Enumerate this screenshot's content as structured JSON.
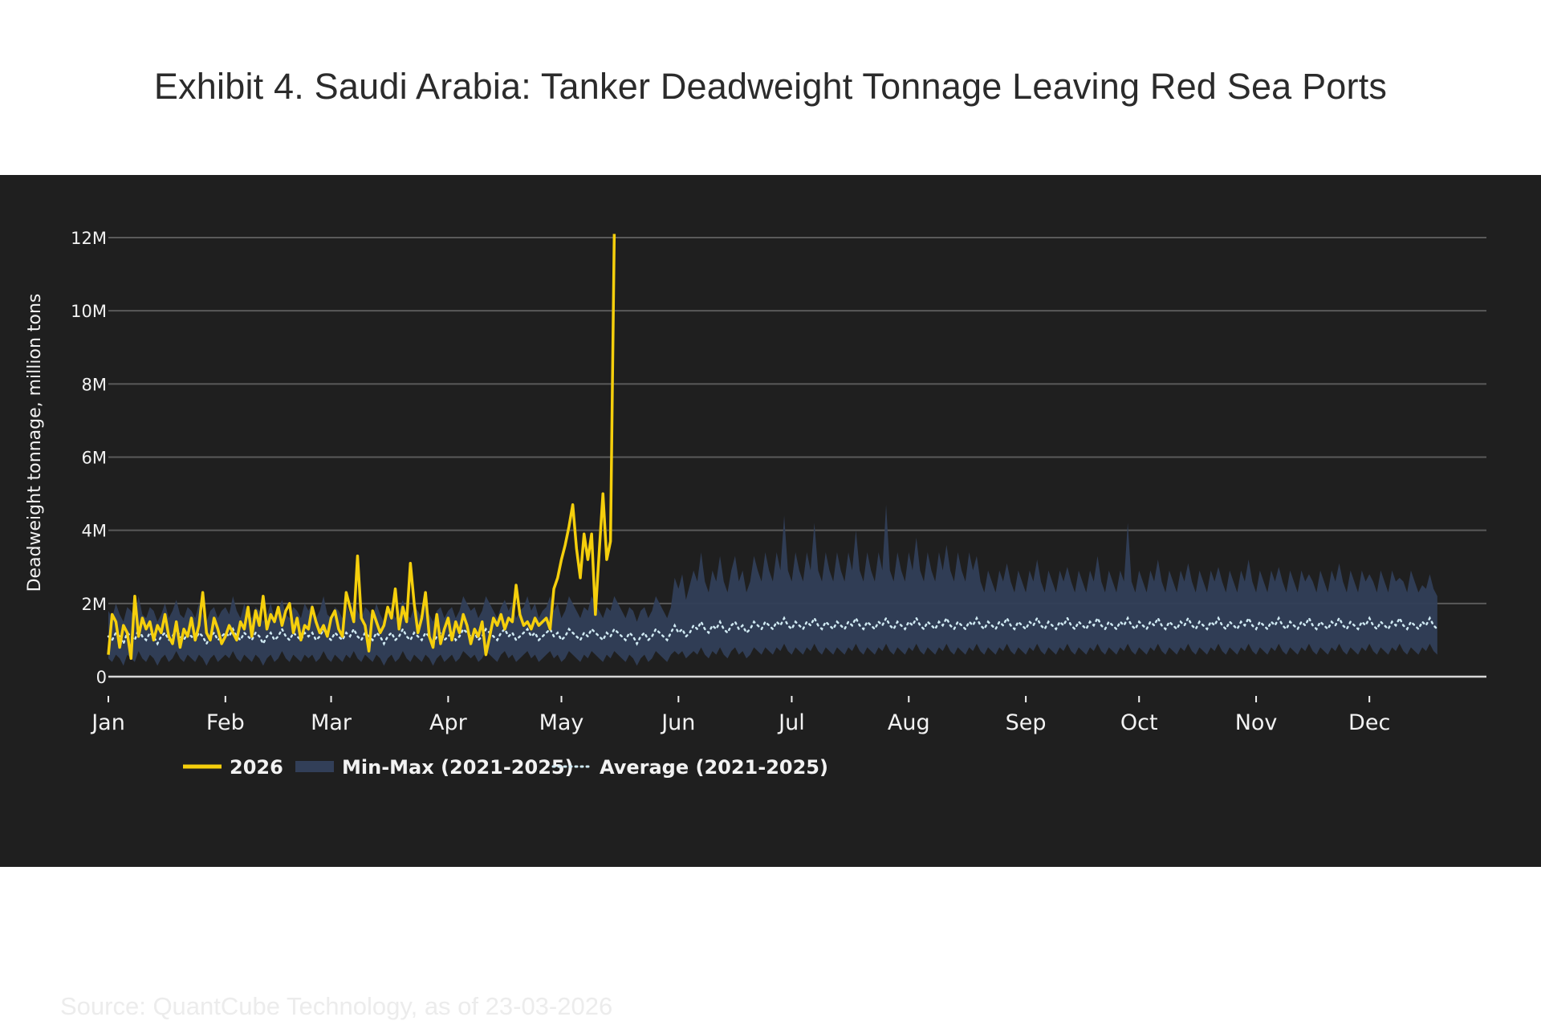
{
  "page": {
    "title": "Exhibit 4. Saudi Arabia: Tanker Deadweight Tonnage Leaving Red Sea Ports",
    "source": "Source: QuantCube Technology, as of 23-03-2026"
  },
  "colors": {
    "series_2026": "#f5cf0c",
    "band": "#323f58",
    "average": "#cfe9f2",
    "grid": "#5a5a5a",
    "zero_line": "#d8d8d8",
    "panel_bg": "#1f1f1f",
    "text": "#f2f2f2"
  },
  "chart_data": {
    "type": "line",
    "title": "Exhibit 4. Saudi Arabia: Tanker Deadweight Tonnage Leaving Red Sea Ports",
    "xlabel": "",
    "ylabel": "Deadweight tonnage, million tons",
    "ylim": [
      0,
      12.5
    ],
    "xlim_day": [
      1,
      366
    ],
    "y_ticks": [
      {
        "value": 0,
        "label": "0"
      },
      {
        "value": 2,
        "label": "2M"
      },
      {
        "value": 4,
        "label": "4M"
      },
      {
        "value": 6,
        "label": "6M"
      },
      {
        "value": 8,
        "label": "8M"
      },
      {
        "value": 10,
        "label": "10M"
      },
      {
        "value": 12,
        "label": "12M"
      }
    ],
    "x_ticks": [
      {
        "day": 1,
        "label": "Jan"
      },
      {
        "day": 32,
        "label": "Feb"
      },
      {
        "day": 60,
        "label": "Mar"
      },
      {
        "day": 91,
        "label": "Apr"
      },
      {
        "day": 121,
        "label": "May"
      },
      {
        "day": 152,
        "label": "Jun"
      },
      {
        "day": 182,
        "label": "Jul"
      },
      {
        "day": 213,
        "label": "Aug"
      },
      {
        "day": 244,
        "label": "Sep"
      },
      {
        "day": 274,
        "label": "Oct"
      },
      {
        "day": 305,
        "label": "Nov"
      },
      {
        "day": 335,
        "label": "Dec"
      }
    ],
    "legend": {
      "placement": "bottom-left",
      "entries": [
        {
          "label": "2026",
          "style": "solid"
        },
        {
          "label": "Min-Max (2021-2025)",
          "style": "band"
        },
        {
          "label": "Average (2021-2025)",
          "style": "dotted"
        }
      ]
    },
    "series": [
      {
        "name": "2026",
        "x_start_day": 1,
        "values": [
          0.6,
          1.7,
          1.5,
          0.8,
          1.4,
          1.2,
          0.5,
          2.2,
          1.1,
          1.6,
          1.3,
          1.5,
          1.0,
          1.4,
          1.2,
          1.7,
          1.1,
          0.9,
          1.5,
          0.8,
          1.3,
          1.1,
          1.6,
          1.0,
          1.4,
          2.3,
          1.2,
          1.0,
          1.6,
          1.3,
          0.9,
          1.1,
          1.4,
          1.2,
          1.0,
          1.5,
          1.3,
          1.9,
          1.1,
          1.8,
          1.4,
          2.2,
          1.3,
          1.7,
          1.5,
          1.9,
          1.4,
          1.8,
          2.0,
          1.2,
          1.6,
          1.0,
          1.4,
          1.3,
          1.9,
          1.5,
          1.2,
          1.4,
          1.1,
          1.6,
          1.8,
          1.3,
          1.1,
          2.3,
          1.9,
          1.5,
          3.3,
          1.6,
          1.4,
          0.7,
          1.8,
          1.5,
          1.2,
          1.4,
          1.9,
          1.6,
          2.4,
          1.3,
          1.9,
          1.5,
          3.1,
          2.0,
          1.2,
          1.6,
          2.3,
          1.1,
          0.8,
          1.7,
          0.9,
          1.3,
          1.6,
          1.0,
          1.5,
          1.2,
          1.7,
          1.4,
          0.9,
          1.3,
          1.1,
          1.5,
          0.6,
          1.1,
          1.6,
          1.4,
          1.7,
          1.3,
          1.6,
          1.5,
          2.5,
          1.7,
          1.4,
          1.5,
          1.3,
          1.6,
          1.4,
          1.5,
          1.6,
          1.3,
          2.4,
          2.7,
          3.2,
          3.6,
          4.1,
          4.7,
          3.5,
          2.7,
          3.9,
          3.2,
          3.9,
          1.7,
          3.4,
          5.0,
          3.2,
          3.7,
          12.1
        ]
      },
      {
        "name": "Average (2021-2025)",
        "x_start_day": 1,
        "values": [
          1.1,
          1.0,
          1.2,
          1.1,
          0.9,
          1.2,
          1.1,
          1.0,
          1.3,
          1.1,
          1.0,
          1.2,
          1.1,
          0.9,
          1.1,
          1.2,
          1.0,
          1.1,
          1.3,
          1.1,
          1.0,
          1.2,
          1.1,
          1.0,
          1.2,
          1.1,
          0.9,
          1.1,
          1.2,
          1.0,
          1.1,
          1.2,
          1.1,
          1.3,
          1.1,
          1.0,
          1.2,
          1.1,
          1.0,
          1.2,
          1.1,
          0.9,
          1.1,
          1.2,
          1.0,
          1.1,
          1.3,
          1.1,
          1.0,
          1.2,
          1.1,
          1.0,
          1.2,
          1.1,
          1.2,
          1.0,
          1.1,
          1.3,
          1.1,
          1.0,
          1.2,
          1.1,
          1.0,
          1.2,
          1.1,
          1.3,
          1.1,
          1.0,
          1.2,
          1.1,
          1.0,
          1.2,
          1.1,
          0.9,
          1.1,
          1.2,
          1.0,
          1.1,
          1.3,
          1.1,
          1.0,
          1.2,
          1.1,
          1.0,
          1.2,
          1.1,
          0.9,
          1.1,
          1.2,
          1.0,
          1.1,
          1.2,
          1.0,
          1.1,
          1.3,
          1.2,
          1.1,
          1.2,
          1.0,
          1.1,
          1.3,
          1.2,
          1.1,
          1.0,
          1.2,
          1.3,
          1.1,
          1.2,
          1.0,
          1.1,
          1.2,
          1.3,
          1.1,
          1.2,
          1.0,
          1.1,
          1.2,
          1.3,
          1.1,
          1.2,
          1.0,
          1.1,
          1.3,
          1.2,
          1.1,
          1.0,
          1.2,
          1.1,
          1.3,
          1.2,
          1.1,
          1.0,
          1.2,
          1.1,
          1.3,
          1.2,
          1.1,
          1.0,
          1.2,
          1.1,
          0.9,
          1.1,
          1.2,
          1.0,
          1.1,
          1.3,
          1.2,
          1.1,
          1.0,
          1.2,
          1.4,
          1.2,
          1.3,
          1.1,
          1.2,
          1.4,
          1.3,
          1.5,
          1.3,
          1.2,
          1.4,
          1.3,
          1.5,
          1.3,
          1.2,
          1.4,
          1.5,
          1.3,
          1.4,
          1.2,
          1.3,
          1.5,
          1.4,
          1.3,
          1.5,
          1.4,
          1.3,
          1.5,
          1.4,
          1.6,
          1.4,
          1.3,
          1.5,
          1.4,
          1.3,
          1.5,
          1.4,
          1.6,
          1.4,
          1.3,
          1.5,
          1.4,
          1.3,
          1.5,
          1.4,
          1.3,
          1.5,
          1.4,
          1.6,
          1.4,
          1.3,
          1.5,
          1.4,
          1.3,
          1.5,
          1.4,
          1.6,
          1.4,
          1.3,
          1.5,
          1.4,
          1.3,
          1.5,
          1.4,
          1.6,
          1.4,
          1.3,
          1.5,
          1.4,
          1.3,
          1.5,
          1.4,
          1.6,
          1.4,
          1.3,
          1.5,
          1.4,
          1.3,
          1.5,
          1.4,
          1.6,
          1.4,
          1.3,
          1.5,
          1.4,
          1.3,
          1.5,
          1.4,
          1.6,
          1.4,
          1.3,
          1.5,
          1.4,
          1.3,
          1.5,
          1.4,
          1.6,
          1.4,
          1.3,
          1.5,
          1.4,
          1.3,
          1.5,
          1.4,
          1.6,
          1.4,
          1.3,
          1.5,
          1.4,
          1.3,
          1.5,
          1.4,
          1.6,
          1.4,
          1.3,
          1.5,
          1.4,
          1.3,
          1.5,
          1.4,
          1.6,
          1.4,
          1.3,
          1.5,
          1.4,
          1.3,
          1.5,
          1.4,
          1.6,
          1.4,
          1.3,
          1.5,
          1.4,
          1.3,
          1.5,
          1.4,
          1.6,
          1.4,
          1.3,
          1.5,
          1.4,
          1.3,
          1.5,
          1.4,
          1.6,
          1.4,
          1.3,
          1.5,
          1.4,
          1.3,
          1.5,
          1.4,
          1.6,
          1.4,
          1.3,
          1.5,
          1.4,
          1.3,
          1.5,
          1.4,
          1.6,
          1.4,
          1.3,
          1.5,
          1.4,
          1.3,
          1.5,
          1.4,
          1.6,
          1.4,
          1.3,
          1.5,
          1.4,
          1.3,
          1.5,
          1.4,
          1.6,
          1.4,
          1.3,
          1.5,
          1.4,
          1.3,
          1.5,
          1.4,
          1.6,
          1.4,
          1.3,
          1.5,
          1.4,
          1.3,
          1.5,
          1.4,
          1.6,
          1.4,
          1.3,
          1.5,
          1.4,
          1.3,
          1.5,
          1.4,
          1.6,
          1.4,
          1.3
        ]
      }
    ],
    "band": {
      "name": "Min-Max (2021-2025)",
      "x_start_day": 1,
      "min": [
        0.5,
        0.4,
        0.6,
        0.5,
        0.3,
        0.6,
        0.5,
        0.4,
        0.7,
        0.5,
        0.4,
        0.6,
        0.5,
        0.3,
        0.5,
        0.6,
        0.4,
        0.5,
        0.7,
        0.5,
        0.4,
        0.6,
        0.5,
        0.4,
        0.6,
        0.5,
        0.3,
        0.5,
        0.6,
        0.4,
        0.5,
        0.6,
        0.5,
        0.7,
        0.5,
        0.4,
        0.6,
        0.5,
        0.4,
        0.6,
        0.5,
        0.3,
        0.5,
        0.6,
        0.4,
        0.5,
        0.7,
        0.5,
        0.4,
        0.6,
        0.5,
        0.4,
        0.6,
        0.5,
        0.6,
        0.4,
        0.5,
        0.7,
        0.5,
        0.4,
        0.6,
        0.5,
        0.4,
        0.6,
        0.5,
        0.7,
        0.5,
        0.4,
        0.6,
        0.5,
        0.4,
        0.6,
        0.5,
        0.3,
        0.5,
        0.6,
        0.4,
        0.5,
        0.7,
        0.5,
        0.4,
        0.6,
        0.5,
        0.4,
        0.6,
        0.5,
        0.3,
        0.5,
        0.6,
        0.4,
        0.5,
        0.6,
        0.4,
        0.5,
        0.7,
        0.6,
        0.5,
        0.6,
        0.4,
        0.5,
        0.7,
        0.6,
        0.5,
        0.4,
        0.6,
        0.7,
        0.5,
        0.6,
        0.4,
        0.5,
        0.6,
        0.7,
        0.5,
        0.6,
        0.4,
        0.5,
        0.6,
        0.7,
        0.5,
        0.6,
        0.4,
        0.5,
        0.7,
        0.6,
        0.5,
        0.4,
        0.6,
        0.5,
        0.7,
        0.6,
        0.5,
        0.4,
        0.6,
        0.5,
        0.7,
        0.6,
        0.5,
        0.4,
        0.6,
        0.5,
        0.3,
        0.5,
        0.6,
        0.4,
        0.5,
        0.7,
        0.6,
        0.5,
        0.4,
        0.6,
        0.7,
        0.6,
        0.7,
        0.5,
        0.6,
        0.7,
        0.6,
        0.8,
        0.6,
        0.5,
        0.7,
        0.6,
        0.8,
        0.6,
        0.5,
        0.7,
        0.8,
        0.6,
        0.7,
        0.5,
        0.6,
        0.8,
        0.7,
        0.6,
        0.8,
        0.7,
        0.6,
        0.8,
        0.7,
        0.9,
        0.7,
        0.6,
        0.8,
        0.7,
        0.6,
        0.8,
        0.7,
        0.9,
        0.7,
        0.6,
        0.8,
        0.7,
        0.6,
        0.8,
        0.7,
        0.6,
        0.8,
        0.7,
        0.9,
        0.7,
        0.6,
        0.8,
        0.7,
        0.6,
        0.8,
        0.7,
        0.9,
        0.7,
        0.6,
        0.8,
        0.7,
        0.6,
        0.8,
        0.7,
        0.9,
        0.7,
        0.6,
        0.8,
        0.7,
        0.6,
        0.8,
        0.7,
        0.9,
        0.7,
        0.6,
        0.8,
        0.7,
        0.6,
        0.8,
        0.7,
        0.9,
        0.7,
        0.6,
        0.8,
        0.7,
        0.6,
        0.8,
        0.7,
        0.9,
        0.7,
        0.6,
        0.8,
        0.7,
        0.6,
        0.8,
        0.7,
        0.9,
        0.7,
        0.6,
        0.8,
        0.7,
        0.6,
        0.8,
        0.7,
        0.9,
        0.7,
        0.6,
        0.8,
        0.7,
        0.6,
        0.8,
        0.7,
        0.9,
        0.7,
        0.6,
        0.8,
        0.7,
        0.6,
        0.8,
        0.7,
        0.9,
        0.7,
        0.6,
        0.8,
        0.7,
        0.6,
        0.8,
        0.7,
        0.9,
        0.7,
        0.6,
        0.8,
        0.7,
        0.6,
        0.8,
        0.7,
        0.9,
        0.7,
        0.6,
        0.8,
        0.7,
        0.6,
        0.8,
        0.7,
        0.9,
        0.7,
        0.6,
        0.8,
        0.7,
        0.6,
        0.8,
        0.7,
        0.9,
        0.7,
        0.6,
        0.8,
        0.7,
        0.6,
        0.8,
        0.7,
        0.9,
        0.7,
        0.6,
        0.8,
        0.7,
        0.6,
        0.8,
        0.7,
        0.9,
        0.7,
        0.6,
        0.8,
        0.7,
        0.6,
        0.8,
        0.7,
        0.9,
        0.7,
        0.6,
        0.8,
        0.7,
        0.6,
        0.8,
        0.7,
        0.9,
        0.7,
        0.6,
        0.8,
        0.7,
        0.6,
        0.8,
        0.7,
        0.9,
        0.7,
        0.6,
        0.8,
        0.7,
        0.6,
        0.8,
        0.7,
        0.9,
        0.7,
        0.6
      ],
      "max": [
        1.8,
        1.6,
        2.0,
        1.7,
        1.5,
        1.9,
        1.8,
        1.6,
        2.2,
        1.7,
        1.6,
        1.9,
        1.8,
        1.5,
        1.7,
        2.0,
        1.6,
        1.8,
        2.1,
        1.7,
        1.6,
        1.9,
        1.8,
        1.6,
        2.0,
        1.7,
        1.5,
        1.8,
        1.9,
        1.6,
        1.8,
        1.9,
        1.7,
        2.2,
        1.8,
        1.6,
        2.0,
        1.7,
        1.6,
        1.9,
        1.8,
        1.5,
        1.7,
        2.0,
        1.6,
        1.8,
        2.1,
        1.7,
        1.6,
        1.9,
        1.8,
        1.6,
        2.0,
        1.8,
        2.0,
        1.6,
        1.8,
        2.2,
        1.7,
        1.6,
        1.9,
        1.8,
        1.6,
        2.0,
        1.7,
        2.1,
        1.8,
        1.6,
        1.9,
        1.8,
        1.6,
        2.0,
        1.7,
        1.5,
        1.8,
        1.9,
        1.6,
        1.8,
        2.1,
        1.7,
        1.6,
        1.9,
        1.8,
        1.6,
        2.0,
        1.7,
        1.5,
        1.8,
        1.9,
        1.6,
        1.8,
        1.9,
        1.6,
        1.8,
        2.2,
        2.0,
        1.8,
        1.9,
        1.6,
        1.8,
        2.2,
        2.0,
        1.8,
        1.6,
        1.9,
        2.1,
        1.8,
        2.0,
        1.6,
        1.8,
        1.9,
        2.2,
        1.8,
        2.0,
        1.6,
        1.8,
        1.9,
        2.2,
        1.8,
        2.0,
        1.6,
        1.8,
        2.2,
        2.0,
        1.8,
        1.6,
        1.9,
        1.8,
        2.2,
        2.0,
        1.8,
        1.6,
        1.9,
        1.8,
        2.2,
        2.0,
        1.8,
        1.6,
        1.9,
        1.8,
        1.5,
        1.8,
        1.9,
        1.6,
        1.8,
        2.2,
        2.0,
        1.8,
        1.6,
        1.9,
        2.7,
        2.4,
        2.8,
        2.1,
        2.5,
        2.9,
        2.6,
        3.4,
        2.6,
        2.3,
        2.9,
        2.6,
        3.3,
        2.6,
        2.3,
        2.9,
        3.3,
        2.6,
        2.9,
        2.3,
        2.6,
        3.3,
        2.9,
        2.6,
        3.4,
        2.9,
        2.6,
        3.4,
        2.9,
        4.4,
        2.9,
        2.6,
        3.4,
        2.9,
        2.6,
        3.4,
        2.9,
        4.2,
        2.9,
        2.6,
        3.4,
        2.9,
        2.6,
        3.4,
        2.9,
        2.6,
        3.4,
        2.9,
        4.0,
        2.9,
        2.6,
        3.4,
        2.9,
        2.6,
        3.4,
        2.9,
        4.7,
        2.9,
        2.6,
        3.4,
        2.9,
        2.6,
        3.4,
        2.9,
        3.8,
        2.9,
        2.6,
        3.4,
        2.9,
        2.6,
        3.4,
        2.9,
        3.6,
        2.9,
        2.6,
        3.4,
        2.9,
        2.6,
        3.4,
        2.9,
        3.3,
        2.6,
        2.3,
        2.9,
        2.6,
        2.3,
        2.9,
        2.6,
        3.1,
        2.6,
        2.3,
        2.9,
        2.6,
        2.3,
        2.9,
        2.6,
        3.2,
        2.6,
        2.3,
        2.9,
        2.6,
        2.3,
        2.9,
        2.6,
        3.0,
        2.6,
        2.3,
        2.9,
        2.6,
        2.3,
        2.9,
        2.6,
        3.3,
        2.6,
        2.3,
        2.9,
        2.6,
        2.3,
        2.9,
        2.6,
        4.2,
        2.6,
        2.3,
        2.9,
        2.6,
        2.3,
        2.9,
        2.6,
        3.2,
        2.6,
        2.3,
        2.9,
        2.6,
        2.3,
        2.9,
        2.6,
        3.1,
        2.6,
        2.3,
        2.9,
        2.6,
        2.3,
        2.9,
        2.6,
        3.0,
        2.6,
        2.3,
        2.9,
        2.6,
        2.3,
        2.9,
        2.6,
        3.2,
        2.6,
        2.3,
        2.9,
        2.6,
        2.3,
        2.9,
        2.6,
        3.0,
        2.6,
        2.3,
        2.9,
        2.6,
        2.3,
        2.9,
        2.6,
        2.8,
        2.6,
        2.3,
        2.9,
        2.6,
        2.3,
        2.9,
        2.6,
        3.1,
        2.6,
        2.3,
        2.9,
        2.6,
        2.3,
        2.9,
        2.6,
        2.8,
        2.6,
        2.3,
        2.9,
        2.6,
        2.3,
        2.9,
        2.6,
        2.7,
        2.6,
        2.3,
        2.9,
        2.6,
        2.3,
        2.5,
        2.4,
        2.8,
        2.4,
        2.2
      ]
    }
  }
}
